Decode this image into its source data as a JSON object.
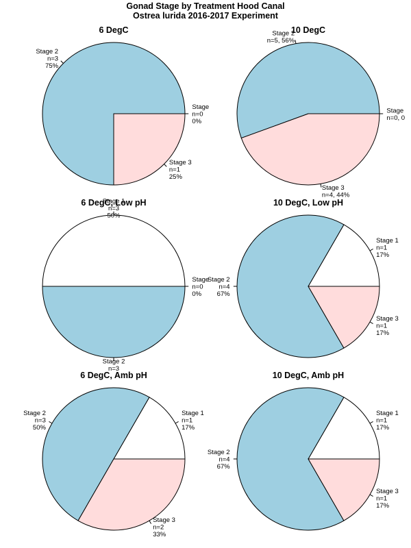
{
  "figure": {
    "title_line1": "Gonad Stage by Treatment Hood Canal",
    "title_line2": "Ostrea lurida 2016-2017 Experiment"
  },
  "colors": {
    "Stage 1": "#ffffff",
    "Stage 2": "#9ecfe1",
    "Stage 3": "#ffdcdc",
    "outline": "#000000"
  },
  "chart_data": [
    {
      "type": "pie",
      "title": "6 DegC",
      "slices": [
        {
          "label_lines": [
            "Stage",
            "n=0",
            "0%"
          ],
          "stage": "Stage 1",
          "value": 0
        },
        {
          "label_lines": [
            "Stage 2",
            "n=3",
            "75%"
          ],
          "stage": "Stage 2",
          "value": 3
        },
        {
          "label_lines": [
            "Stage 3",
            "n=1",
            "25%"
          ],
          "stage": "Stage 3",
          "value": 1
        }
      ]
    },
    {
      "type": "pie",
      "title": "10 DegC",
      "slices": [
        {
          "label_lines": [
            "Stage",
            "n=0, 0"
          ],
          "stage": "Stage 1",
          "value": 0
        },
        {
          "label_lines": [
            "Stage 2",
            "n=5, 56%"
          ],
          "stage": "Stage 2",
          "value": 5
        },
        {
          "label_lines": [
            "Stage 3",
            "n=4, 44%"
          ],
          "stage": "Stage 3",
          "value": 4
        }
      ]
    },
    {
      "type": "pie",
      "title": "6 DegC, Low pH",
      "slices": [
        {
          "label_lines": [
            "Stage 1",
            "n=3",
            "50%"
          ],
          "stage": "Stage 1",
          "value": 3
        },
        {
          "label_lines": [
            "Stage 2",
            "n=3"
          ],
          "stage": "Stage 2",
          "value": 3
        },
        {
          "label_lines": [
            "Stage",
            "n=0",
            "0%"
          ],
          "stage": "Stage 3",
          "value": 0
        }
      ]
    },
    {
      "type": "pie",
      "title": "10 DegC, Low pH",
      "slices": [
        {
          "label_lines": [
            "Stage 1",
            "n=1",
            "17%"
          ],
          "stage": "Stage 1",
          "value": 1
        },
        {
          "label_lines": [
            "Stage 2",
            "n=4",
            "67%"
          ],
          "stage": "Stage 2",
          "value": 4
        },
        {
          "label_lines": [
            "Stage 3",
            "n=1",
            "17%"
          ],
          "stage": "Stage 3",
          "value": 1
        }
      ]
    },
    {
      "type": "pie",
      "title": "6 DegC, Amb pH",
      "slices": [
        {
          "label_lines": [
            "Stage 1",
            "n=1",
            "17%"
          ],
          "stage": "Stage 1",
          "value": 1
        },
        {
          "label_lines": [
            "Stage 2",
            "n=3",
            "50%"
          ],
          "stage": "Stage 2",
          "value": 3
        },
        {
          "label_lines": [
            "Stage 3",
            "n=2",
            "33%"
          ],
          "stage": "Stage 3",
          "value": 2
        }
      ]
    },
    {
      "type": "pie",
      "title": "10 DegC, Amb pH",
      "slices": [
        {
          "label_lines": [
            "Stage 1",
            "n=1",
            "17%"
          ],
          "stage": "Stage 1",
          "value": 1
        },
        {
          "label_lines": [
            "Stage 2",
            "n=4",
            "67%"
          ],
          "stage": "Stage 2",
          "value": 4
        },
        {
          "label_lines": [
            "Stage 3",
            "n=1",
            "17%"
          ],
          "stage": "Stage 3",
          "value": 1
        }
      ]
    }
  ]
}
